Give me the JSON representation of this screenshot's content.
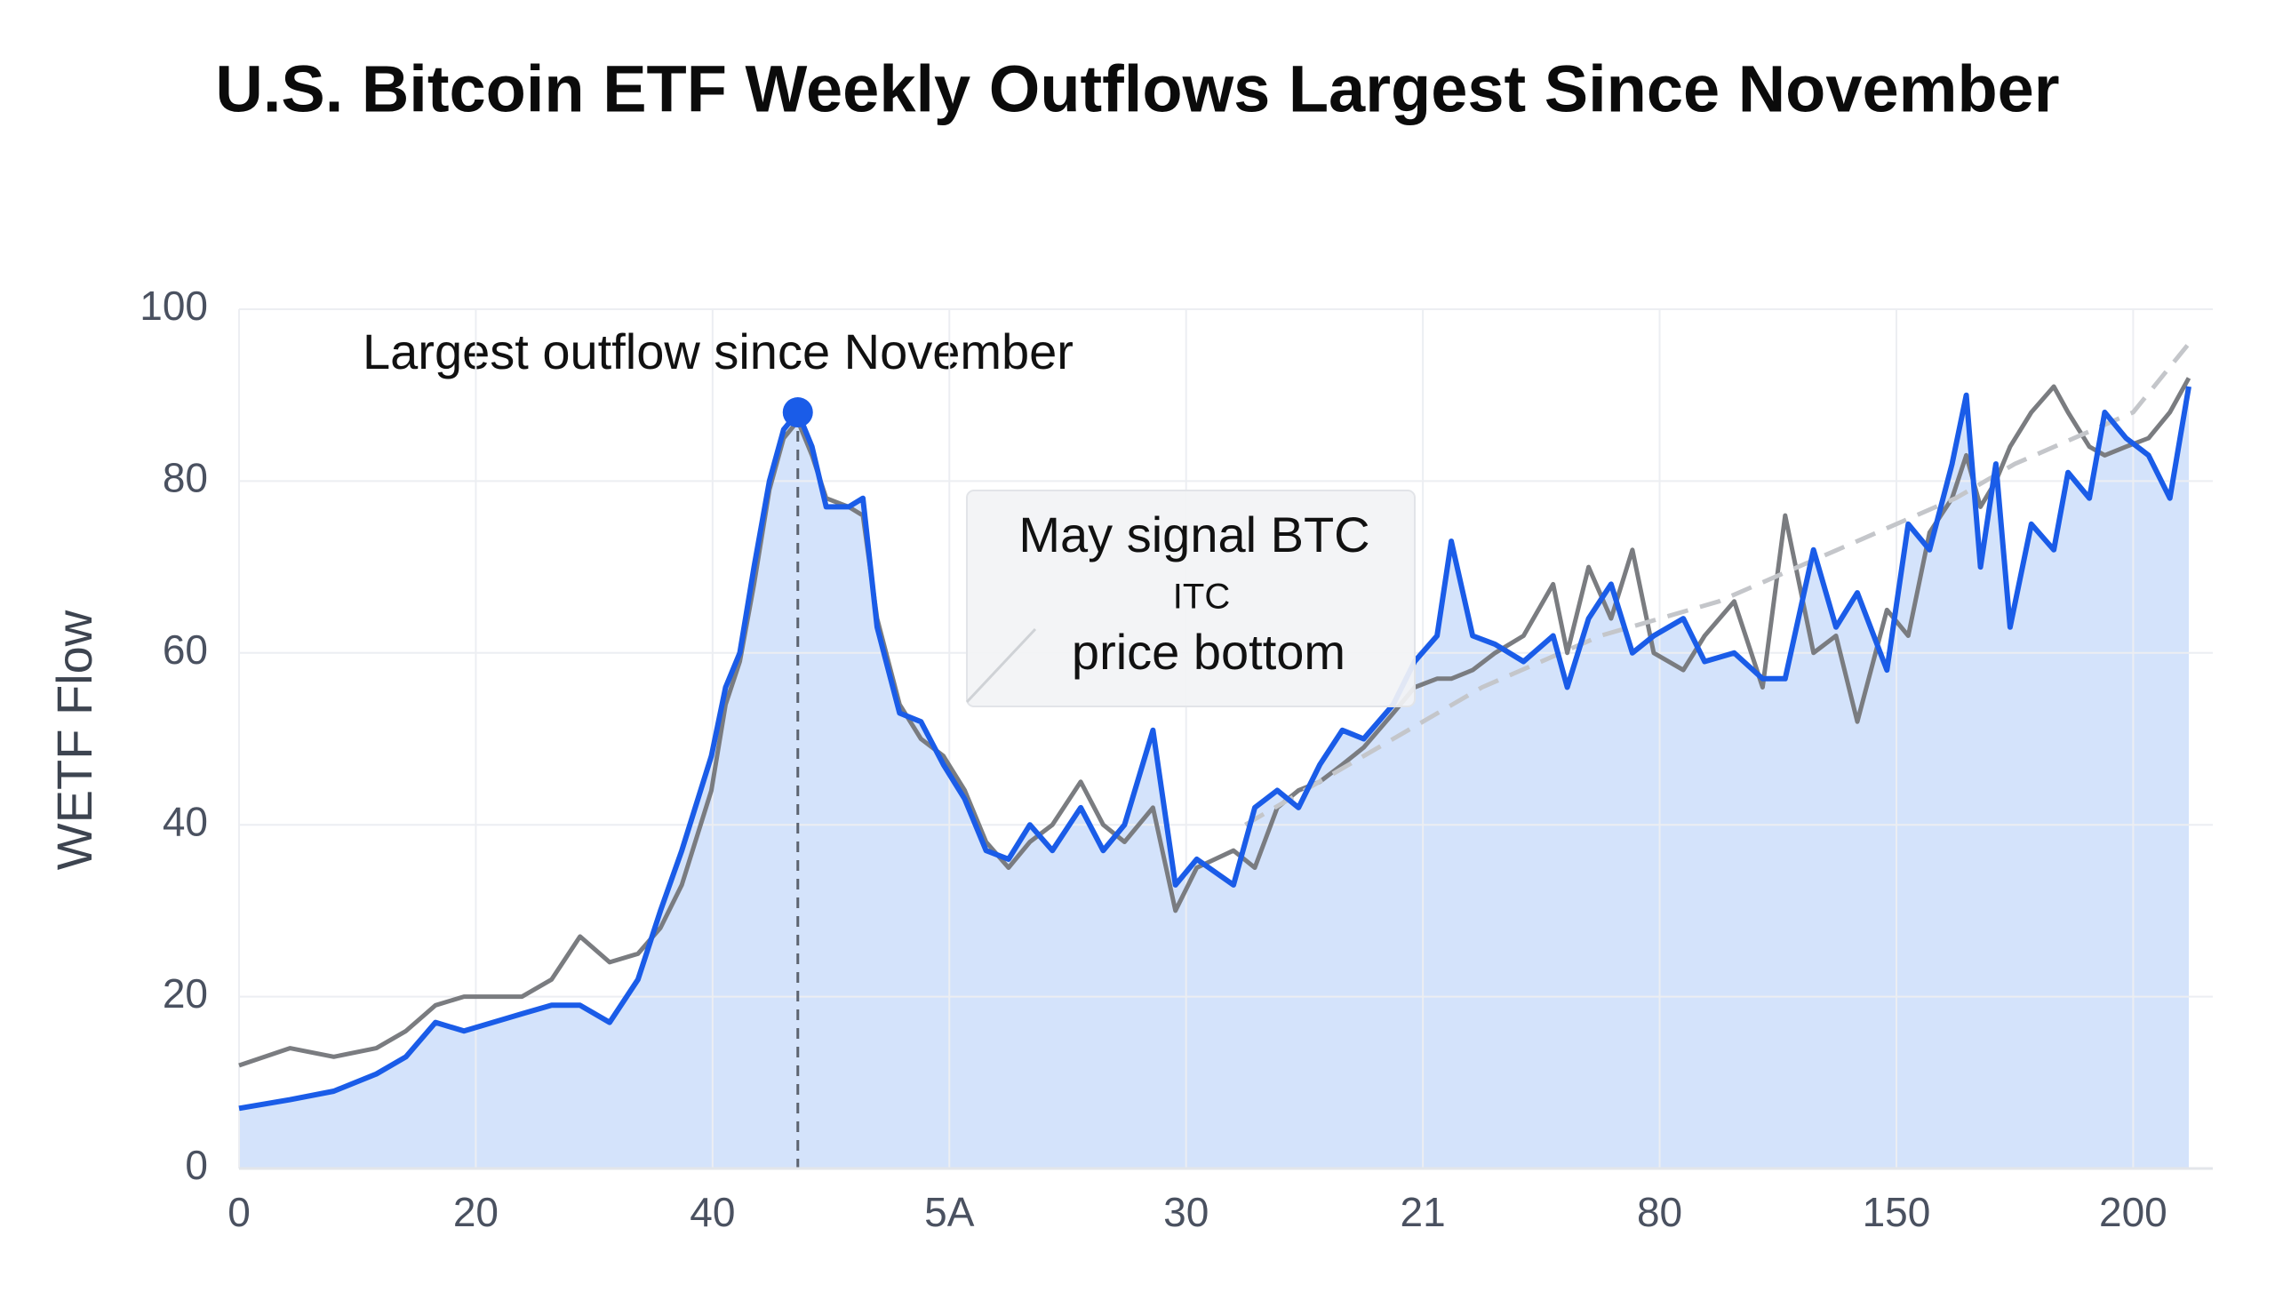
{
  "chart_data": {
    "type": "line",
    "title": "U.S. Bitcoin ETF Weekly Outflows Largest Since November",
    "y_label": "WETF Flow",
    "x": [
      0,
      4.3,
      8,
      11.6,
      14.1,
      16.6,
      19,
      23.9,
      26.4,
      28.8,
      31.3,
      33.7,
      35.6,
      37.4,
      39.9,
      41.1,
      42.3,
      43.5,
      44.8,
      46,
      47.2,
      48.4,
      49.6,
      51.5,
      52.7,
      53.9,
      55.8,
      57.6,
      59.5,
      61.3,
      63.1,
      65,
      66.8,
      68.7,
      71.1,
      73,
      74.8,
      77.2,
      79.1,
      80.9,
      84,
      85.8,
      87.7,
      89.5,
      91.3,
      93.2,
      95,
      97.5,
      99.3,
      101.2,
      102.4,
      104.2,
      106.1,
      108.5,
      111,
      112.2,
      114,
      115.9,
      117.7,
      119.5,
      122,
      123.8,
      126.3,
      128.7,
      130.6,
      133,
      134.9,
      136.7,
      139.2,
      141,
      142.8,
      144.7,
      145.9,
      147.1,
      148.4,
      149.6,
      151.4,
      153.3,
      154.5,
      156.3,
      157.6,
      159.4,
      161.3,
      163.1,
      164.7
    ],
    "series": [
      {
        "color": "#1a5ce8",
        "fill": "#cfe0fb",
        "values": [
          7,
          8,
          9,
          11,
          13,
          17,
          16,
          18,
          19,
          19,
          17,
          22,
          30,
          37,
          48,
          56,
          60,
          70,
          80,
          86,
          88,
          84,
          77,
          77,
          78,
          63,
          53,
          52,
          47,
          43,
          37,
          36,
          40,
          37,
          42,
          37,
          40,
          51,
          33,
          36,
          33,
          42,
          44,
          42,
          47,
          51,
          50,
          54,
          59,
          62,
          73,
          62,
          61,
          59,
          62,
          56,
          64,
          68,
          60,
          62,
          64,
          59,
          60,
          57,
          57,
          72,
          63,
          67,
          58,
          75,
          72,
          82,
          90,
          70,
          82,
          63,
          75,
          72,
          81,
          78,
          88,
          85,
          83,
          78,
          91
        ]
      },
      {
        "color": "#7a7c80",
        "values": [
          12,
          14,
          13,
          14,
          16,
          19,
          20,
          20,
          22,
          27,
          24,
          25,
          28,
          33,
          44,
          54,
          59,
          68,
          79,
          85,
          87,
          83,
          78,
          77,
          76,
          64,
          54,
          50,
          48,
          44,
          38,
          35,
          38,
          40,
          45,
          40,
          38,
          42,
          30,
          35,
          37,
          35,
          42,
          44,
          45,
          47,
          49,
          53,
          56,
          57,
          57,
          58,
          60,
          62,
          68,
          60,
          70,
          64,
          72,
          60,
          58,
          62,
          66,
          56,
          76,
          60,
          62,
          52,
          65,
          62,
          74,
          78,
          83,
          77,
          80,
          84,
          88,
          91,
          88,
          84,
          83,
          84,
          85,
          88,
          92
        ]
      },
      {
        "color": "#c4c6ca",
        "dashed": true,
        "x": [
          85,
          95,
          105,
          115,
          125,
          135,
          145,
          150,
          155,
          160,
          164.7
        ],
        "values": [
          40,
          48,
          56,
          62,
          66,
          72,
          78,
          82,
          85,
          88,
          96
        ]
      }
    ],
    "xlim": [
      0,
      165
    ],
    "xticks": [
      0,
      20,
      40,
      {
        "value": 60,
        "label": "5A"
      },
      {
        "value": 80,
        "label": "30"
      },
      {
        "value": 100,
        "label": "21"
      },
      {
        "value": 120,
        "label": "80"
      },
      {
        "value": 140,
        "label": "150"
      },
      {
        "value": 160,
        "label": "200"
      }
    ],
    "ylim": [
      0,
      100
    ],
    "yticks": [
      0,
      20,
      40,
      60,
      80,
      100
    ],
    "grid": true,
    "annotations": [
      {
        "text": "Largest outflow since November",
        "x": 47.2,
        "y": 88,
        "color": "#1a5ce8"
      },
      {
        "lines": [
          "May signal BTC",
          "ITC",
          "price bottom"
        ]
      }
    ]
  }
}
